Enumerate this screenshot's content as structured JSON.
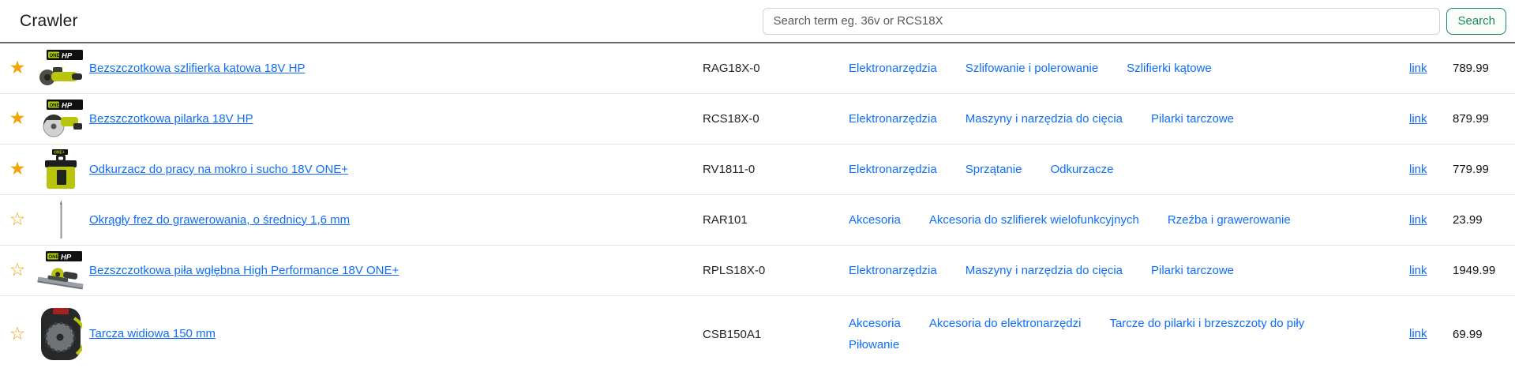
{
  "header": {
    "title": "Crawler",
    "search": {
      "placeholder": "Search term eg. 36v or RCS18X",
      "value": "",
      "button_label": "Search"
    }
  },
  "colors": {
    "link_blue": "#0d6efd",
    "star_gold": "#f0a30a",
    "button_green": "#198754",
    "header_border": "#6a6a6a",
    "row_border": "#e4e4e4"
  },
  "table": {
    "link_label": "link",
    "rows": [
      {
        "starred": true,
        "image": "angle-grinder",
        "name": "Bezszczotkowa szlifierka kątowa 18V HP",
        "sku": "RAG18X-0",
        "category_lines": [
          [
            "Elektronarzędzia",
            "Szlifowanie i polerowanie",
            "Szlifierki kątowe"
          ]
        ],
        "price": "789.99"
      },
      {
        "starred": true,
        "image": "circular-saw",
        "name": "Bezszczotkowa pilarka 18V HP",
        "sku": "RCS18X-0",
        "category_lines": [
          [
            "Elektronarzędzia",
            "Maszyny i narzędzia do cięcia",
            "Pilarki tarczowe"
          ]
        ],
        "price": "879.99"
      },
      {
        "starred": true,
        "image": "wet-dry-vacuum",
        "name": "Odkurzacz do pracy na mokro i sucho 18V ONE+",
        "sku": "RV1811-0",
        "category_lines": [
          [
            "Elektronarzędzia",
            "Sprzątanie",
            "Odkurzacze"
          ]
        ],
        "price": "779.99"
      },
      {
        "starred": false,
        "image": "engraving-bit",
        "name": "Okrągły frez do grawerowania, o średnicy 1,6 mm",
        "sku": "RAR101",
        "category_lines": [
          [
            "Akcesoria",
            "Akcesoria do szlifierek wielofunkcyjnych",
            "Rzeźba i grawerowanie"
          ]
        ],
        "price": "23.99"
      },
      {
        "starred": false,
        "image": "track-saw",
        "name": "Bezszczotkowa piła wgłębna High Performance 18V ONE+",
        "sku": "RPLS18X-0",
        "category_lines": [
          [
            "Elektronarzędzia",
            "Maszyny i narzędzia do cięcia",
            "Pilarki tarczowe"
          ]
        ],
        "price": "1949.99"
      },
      {
        "starred": false,
        "image": "saw-blade-pack",
        "name": "Tarcza widiowa 150 mm",
        "sku": "CSB150A1",
        "category_lines": [
          [
            "Akcesoria",
            "Akcesoria do elektronarzędzi",
            "Tarcze do pilarki i brzeszczoty do piły"
          ],
          [
            "Piłowanie"
          ]
        ],
        "price": "69.99"
      }
    ]
  }
}
